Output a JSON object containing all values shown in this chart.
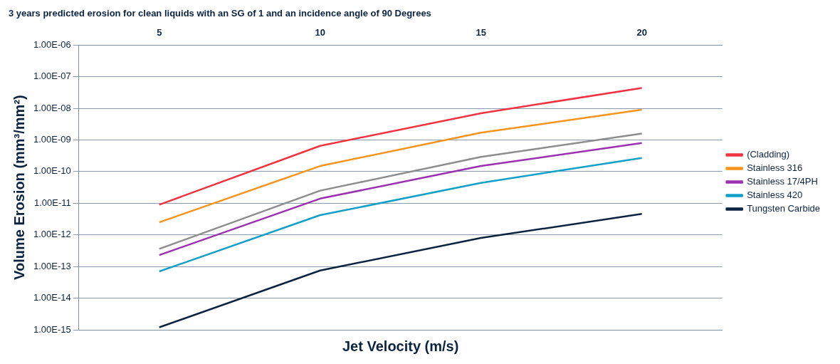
{
  "chart_data": {
    "type": "line",
    "title": "3 years predicted erosion for clean liquids with an SG of 1 and an incidence angle of 90 Degrees",
    "xlabel": "Jet Velocity (m/s)",
    "ylabel": "Volume Erosion (mm³/mm²)",
    "categories": [
      "5",
      "10",
      "15",
      "20"
    ],
    "series": [
      {
        "name": "(Cladding)",
        "color": "#ef3340",
        "values": [
          9e-12,
          6.5e-10,
          7e-09,
          4.4e-08
        ]
      },
      {
        "name": "Stainless 316",
        "color": "#f7941d",
        "values": [
          2.5e-12,
          1.5e-10,
          1.7e-09,
          9e-09
        ]
      },
      {
        "color": "#8d8d8d",
        "values": [
          3.6e-13,
          2.5e-11,
          2.9e-10,
          1.6e-09
        ]
      },
      {
        "name": "Stainless 17/4PH",
        "color": "#9b30b0",
        "values": [
          2.3e-13,
          1.4e-11,
          1.5e-10,
          8e-10
        ]
      },
      {
        "name": "Stainless 420",
        "color": "#12a0c8",
        "values": [
          7e-14,
          4.2e-12,
          4.4e-11,
          2.7e-10
        ]
      },
      {
        "name": "Tungsten Carbide",
        "color": "#0c2340",
        "values": [
          1.2e-15,
          7.5e-14,
          8e-13,
          4.6e-12
        ]
      }
    ],
    "log": "y",
    "ylim": [
      1e-15,
      1e-06
    ],
    "yticks": [
      {
        "value": 1e-15,
        "label": "1.00E-15"
      },
      {
        "value": 1e-14,
        "label": "1.00E-14"
      },
      {
        "value": 1e-13,
        "label": "1.00E-13"
      },
      {
        "value": 1e-12,
        "label": "1.00E-12"
      },
      {
        "value": 1e-11,
        "label": "1.00E-11"
      },
      {
        "value": 1e-10,
        "label": "1.00E-10"
      },
      {
        "value": 1e-09,
        "label": "1.00E-09"
      },
      {
        "value": 1e-08,
        "label": "1.00E-08"
      },
      {
        "value": 1e-07,
        "label": "1.00E-07"
      },
      {
        "value": 1e-06,
        "label": "1.00E-06"
      }
    ],
    "grid": "y",
    "legend": "right",
    "marker": "none",
    "line_style": "solid"
  }
}
